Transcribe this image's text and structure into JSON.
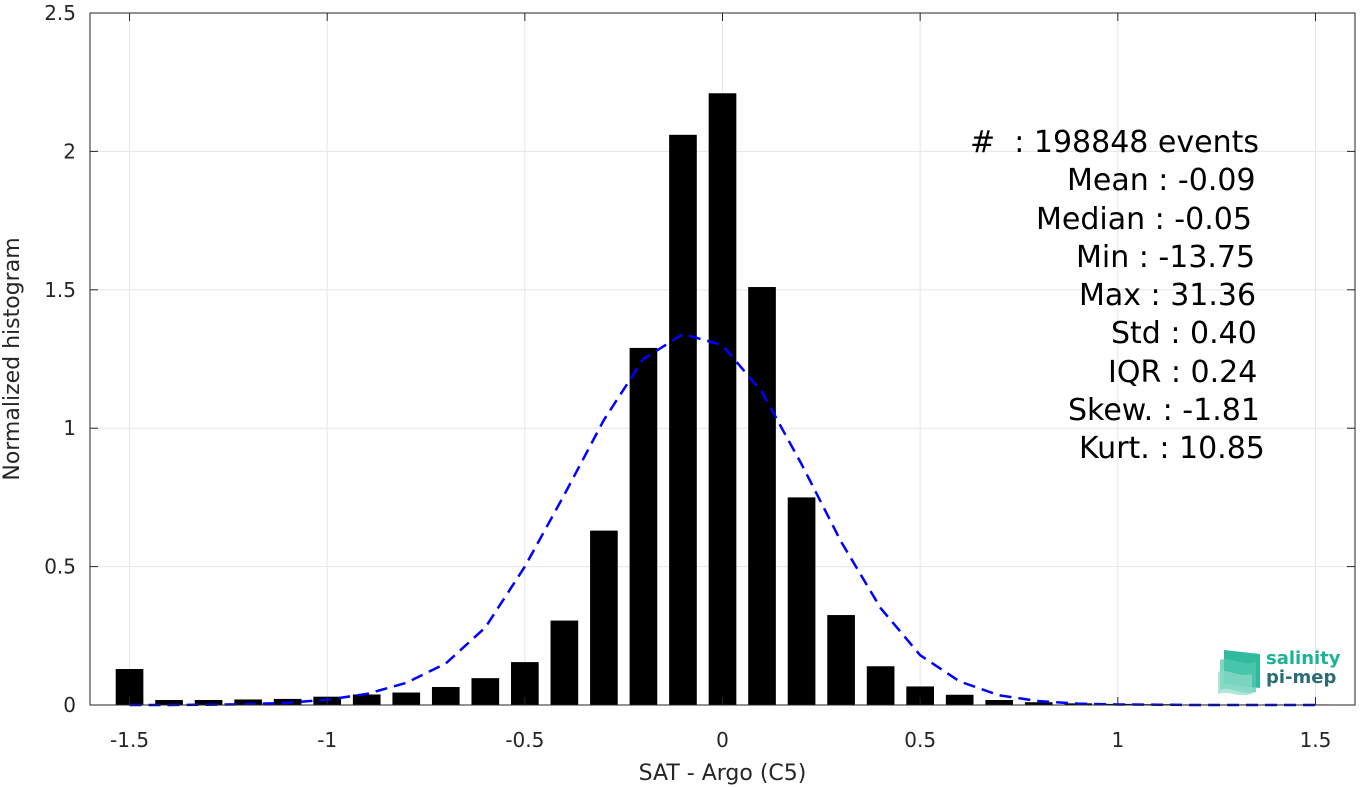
{
  "chart_data": {
    "type": "bar",
    "xlabel": "SAT - Argo (C5)",
    "ylabel": "Normalized histogram",
    "xlim": [
      -1.6,
      1.6
    ],
    "ylim": [
      0,
      2.5
    ],
    "x_ticks": [
      -1.5,
      -1,
      -0.5,
      0,
      0.5,
      1,
      1.5
    ],
    "x_tick_labels": [
      "-1.5",
      "-1",
      "-0.5",
      "0",
      "0.5",
      "1",
      "1.5"
    ],
    "y_ticks": [
      0,
      0.5,
      1,
      1.5,
      2,
      2.5
    ],
    "y_tick_labels": [
      "0",
      "0.5",
      "1",
      "1.5",
      "2",
      "2.5"
    ],
    "grid": true,
    "bin_width": 0.1,
    "bar_color": "#000000",
    "series": [
      {
        "type": "bar",
        "x": [
          -1.5,
          -1.4,
          -1.3,
          -1.2,
          -1.1,
          -1.0,
          -0.9,
          -0.8,
          -0.7,
          -0.6,
          -0.5,
          -0.4,
          -0.3,
          -0.2,
          -0.1,
          0.0,
          0.1,
          0.2,
          0.3,
          0.4,
          0.5,
          0.6,
          0.7,
          0.8,
          0.9,
          1.0,
          1.1,
          1.2,
          1.3,
          1.4,
          1.5
        ],
        "values": [
          0.13,
          0.018,
          0.018,
          0.02,
          0.022,
          0.03,
          0.038,
          0.045,
          0.065,
          0.097,
          0.155,
          0.305,
          0.63,
          1.29,
          2.06,
          2.21,
          1.51,
          0.75,
          0.325,
          0.14,
          0.067,
          0.037,
          0.018,
          0.01,
          0.006,
          0.004,
          0.003,
          0.002,
          0.002,
          0.002,
          0.002
        ]
      },
      {
        "type": "line",
        "style": "dashed",
        "color": "#0000ff",
        "x": [
          -1.5,
          -1.4,
          -1.3,
          -1.2,
          -1.1,
          -1.0,
          -0.9,
          -0.8,
          -0.7,
          -0.6,
          -0.5,
          -0.4,
          -0.3,
          -0.2,
          -0.1,
          0.0,
          0.1,
          0.2,
          0.3,
          0.4,
          0.5,
          0.6,
          0.7,
          0.8,
          0.9,
          1.0,
          1.1,
          1.2,
          1.3,
          1.4,
          1.5
        ],
        "values": [
          0.0,
          0.0,
          0.001,
          0.003,
          0.008,
          0.019,
          0.04,
          0.08,
          0.15,
          0.28,
          0.5,
          0.76,
          1.03,
          1.25,
          1.34,
          1.3,
          1.13,
          0.87,
          0.59,
          0.35,
          0.18,
          0.085,
          0.035,
          0.014,
          0.005,
          0.002,
          0.001,
          0.0,
          0.0,
          0.0,
          0.0
        ]
      }
    ],
    "annotations": [
      "#  : 198848 events",
      "Mean : -0.09",
      "Median : -0.05",
      "Min : -13.75",
      "Max : 31.36",
      "Std : 0.40",
      "IQR : 0.24",
      "Skew. : -1.81",
      "Kurt. : 10.85"
    ]
  },
  "logo": {
    "line1": "salinity",
    "line2": "pi-mep"
  }
}
